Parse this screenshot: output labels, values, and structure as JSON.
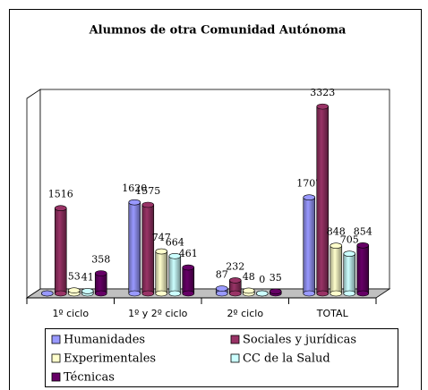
{
  "chart_data": {
    "type": "bar",
    "title": "Alumnos de otra Comunidad Autónoma",
    "categories": [
      "1º ciclo",
      "1º y 2º ciclo",
      "2º ciclo",
      "TOTAL"
    ],
    "ylim": [
      0,
      3500
    ],
    "series": [
      {
        "name": "Humanidades",
        "color": "#9999ff",
        "values": [
          0,
          1620,
          87,
          1707
        ],
        "value_labels": [
          null,
          "1620",
          "87",
          "1707"
        ]
      },
      {
        "name": "Sociales y jurídicas",
        "color": "#993366",
        "values": [
          1516,
          1575,
          232,
          3323
        ]
      },
      {
        "name": "Experimentales",
        "color": "#ffffcc",
        "values": [
          53,
          747,
          48,
          848
        ]
      },
      {
        "name": "CC de la Salud",
        "color": "#ccffff",
        "values": [
          41,
          664,
          0,
          705
        ]
      },
      {
        "name": "Técnicas",
        "color": "#660066",
        "values": [
          358,
          461,
          35,
          854
        ]
      }
    ]
  }
}
